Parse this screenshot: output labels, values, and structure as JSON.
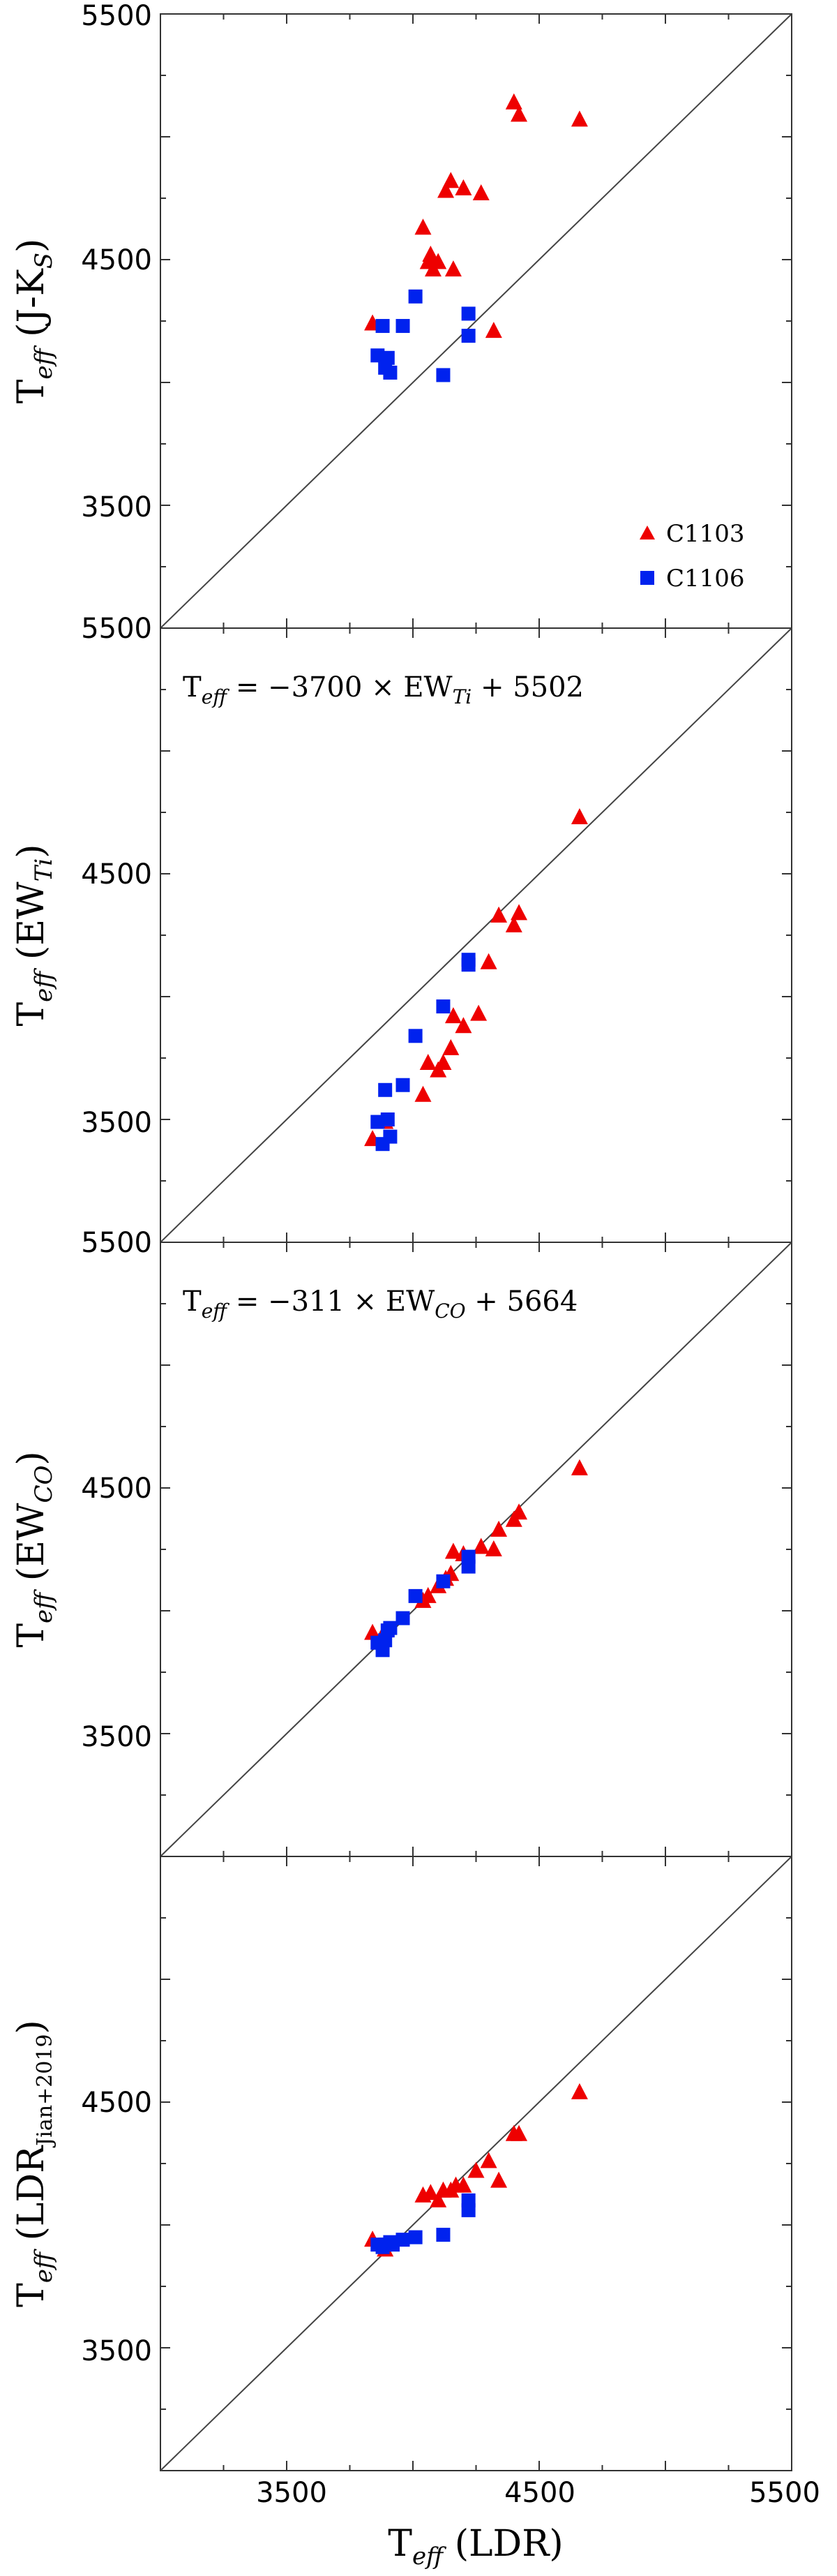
{
  "colors": {
    "c1103": "#ee0000",
    "c1106": "#0022ee",
    "axis": "#333333",
    "identity_line": "#444444"
  },
  "chart_data": [
    {
      "type": "scatter",
      "panel": "top",
      "ylabel": "T_eff (J-K_S)",
      "ylabel_main": "T",
      "ylabel_sub": "eff",
      "ylabel_rest": " (J-K",
      "ylabel_sub2": "S",
      "ylabel_end": ")",
      "xlim": [
        3000,
        5500
      ],
      "ylim": [
        3000,
        5500
      ],
      "x_ticks": [
        3500,
        4500,
        5500
      ],
      "y_tick_labels": [
        "5500",
        "4500",
        "3500"
      ],
      "y_tick_values": [
        5500,
        4500,
        3500
      ],
      "identity_line": true,
      "legend": {
        "position": "bottom-right",
        "entries": [
          {
            "label": "C1103",
            "marker": "triangle",
            "color_key": "c1103"
          },
          {
            "label": "C1106",
            "marker": "square",
            "color_key": "c1106"
          }
        ]
      },
      "series": [
        {
          "name": "C1103",
          "marker": "triangle",
          "points": [
            [
              3840,
              4240
            ],
            [
              4040,
              4630
            ],
            [
              4060,
              4490
            ],
            [
              4070,
              4520
            ],
            [
              4080,
              4460
            ],
            [
              4100,
              4490
            ],
            [
              4130,
              4780
            ],
            [
              4150,
              4820
            ],
            [
              4160,
              4460
            ],
            [
              4200,
              4790
            ],
            [
              4270,
              4770
            ],
            [
              4320,
              4210
            ],
            [
              4400,
              5140
            ],
            [
              4420,
              5090
            ],
            [
              4660,
              5070
            ]
          ]
        },
        {
          "name": "C1106",
          "marker": "square",
          "points": [
            [
              3860,
              4110
            ],
            [
              3880,
              4230
            ],
            [
              3890,
              4060
            ],
            [
              3900,
              4100
            ],
            [
              3910,
              4040
            ],
            [
              3960,
              4230
            ],
            [
              4010,
              4350
            ],
            [
              4120,
              4030
            ],
            [
              4220,
              4280
            ],
            [
              4220,
              4190
            ]
          ]
        }
      ]
    },
    {
      "type": "scatter",
      "panel": "second",
      "ylabel": "T_eff (EW_Ti)",
      "ylabel_main": "T",
      "ylabel_sub": "eff",
      "ylabel_rest": " (EW",
      "ylabel_sub2": "Ti",
      "ylabel_end": ")",
      "annotation": "T_eff = −3700 × EW_Ti + 5502",
      "annotation_parts": {
        "main": "T",
        "sub": "eff",
        "mid": " = −3700 × EW",
        "sub2": "Ti",
        "end": " + 5502"
      },
      "xlim": [
        3000,
        5500
      ],
      "ylim": [
        3000,
        5500
      ],
      "y_tick_labels": [
        "5500",
        "4500",
        "3500"
      ],
      "y_tick_values": [
        5500,
        4500,
        3500
      ],
      "identity_line": true,
      "series": [
        {
          "name": "C1103",
          "marker": "triangle",
          "points": [
            [
              3840,
              3420
            ],
            [
              3890,
              3490
            ],
            [
              4040,
              3600
            ],
            [
              4060,
              3730
            ],
            [
              4100,
              3700
            ],
            [
              4120,
              3730
            ],
            [
              4150,
              3790
            ],
            [
              4160,
              3920
            ],
            [
              4200,
              3880
            ],
            [
              4260,
              3930
            ],
            [
              4300,
              4140
            ],
            [
              4340,
              4330
            ],
            [
              4400,
              4290
            ],
            [
              4420,
              4340
            ],
            [
              4660,
              4730
            ]
          ]
        },
        {
          "name": "C1106",
          "marker": "square",
          "points": [
            [
              3860,
              3490
            ],
            [
              3880,
              3400
            ],
            [
              3890,
              3620
            ],
            [
              3900,
              3500
            ],
            [
              3910,
              3430
            ],
            [
              3960,
              3640
            ],
            [
              4010,
              3840
            ],
            [
              4120,
              3960
            ],
            [
              4220,
              4130
            ],
            [
              4220,
              4150
            ]
          ]
        }
      ]
    },
    {
      "type": "scatter",
      "panel": "third",
      "ylabel": "T_eff (EW_CO)",
      "ylabel_main": "T",
      "ylabel_sub": "eff",
      "ylabel_rest": " (EW",
      "ylabel_sub2": "CO",
      "ylabel_end": ")",
      "annotation": "T_eff = −311 × EW_CO + 5664",
      "annotation_parts": {
        "main": "T",
        "sub": "eff",
        "mid": " = −311 × EW",
        "sub2": "CO",
        "end": " + 5664"
      },
      "xlim": [
        3000,
        5500
      ],
      "ylim": [
        3000,
        5500
      ],
      "y_tick_labels": [
        "5500",
        "4500",
        "3500"
      ],
      "y_tick_values": [
        5500,
        4500,
        3500
      ],
      "identity_line": true,
      "series": [
        {
          "name": "C1103",
          "marker": "triangle",
          "points": [
            [
              3840,
              3910
            ],
            [
              3890,
              3920
            ],
            [
              4040,
              4040
            ],
            [
              4060,
              4060
            ],
            [
              4100,
              4100
            ],
            [
              4130,
              4130
            ],
            [
              4150,
              4150
            ],
            [
              4160,
              4240
            ],
            [
              4200,
              4230
            ],
            [
              4270,
              4260
            ],
            [
              4320,
              4250
            ],
            [
              4340,
              4330
            ],
            [
              4400,
              4370
            ],
            [
              4420,
              4400
            ],
            [
              4660,
              4580
            ]
          ]
        },
        {
          "name": "C1106",
          "marker": "square",
          "points": [
            [
              3860,
              3870
            ],
            [
              3880,
              3840
            ],
            [
              3890,
              3880
            ],
            [
              3900,
              3920
            ],
            [
              3910,
              3930
            ],
            [
              3960,
              3970
            ],
            [
              4010,
              4060
            ],
            [
              4120,
              4120
            ],
            [
              4220,
              4220
            ],
            [
              4220,
              4180
            ]
          ]
        }
      ]
    },
    {
      "type": "scatter",
      "panel": "bottom",
      "ylabel": "T_eff (LDR_Jian+2019)",
      "ylabel_main": "T",
      "ylabel_sub": "eff",
      "ylabel_rest": " (LDR",
      "ylabel_sub2": "Jian+2019",
      "ylabel_end": ")",
      "xlabel": "T_eff (LDR)",
      "xlabel_main": "T",
      "xlabel_sub": "eff",
      "xlabel_rest": " (LDR)",
      "xlim": [
        3000,
        5500
      ],
      "ylim": [
        3000,
        5500
      ],
      "x_tick_labels": [
        "3500",
        "4500",
        "5500"
      ],
      "x_tick_values": [
        3500,
        4500,
        5500
      ],
      "y_tick_labels": [
        "4500",
        "3500"
      ],
      "y_tick_values": [
        4500,
        3500
      ],
      "identity_line": true,
      "series": [
        {
          "name": "C1103",
          "marker": "triangle",
          "points": [
            [
              3840,
              3940
            ],
            [
              3890,
              3900
            ],
            [
              4040,
              4120
            ],
            [
              4070,
              4130
            ],
            [
              4100,
              4100
            ],
            [
              4120,
              4140
            ],
            [
              4150,
              4140
            ],
            [
              4170,
              4160
            ],
            [
              4200,
              4160
            ],
            [
              4250,
              4220
            ],
            [
              4300,
              4260
            ],
            [
              4340,
              4180
            ],
            [
              4400,
              4370
            ],
            [
              4420,
              4370
            ],
            [
              4660,
              4540
            ]
          ]
        },
        {
          "name": "C1106",
          "marker": "square",
          "points": [
            [
              3860,
              3920
            ],
            [
              3880,
              3910
            ],
            [
              3890,
              3920
            ],
            [
              3910,
              3930
            ],
            [
              3920,
              3920
            ],
            [
              3960,
              3940
            ],
            [
              4010,
              3950
            ],
            [
              4120,
              3960
            ],
            [
              4220,
              4060
            ],
            [
              4220,
              4100
            ]
          ]
        }
      ]
    }
  ]
}
